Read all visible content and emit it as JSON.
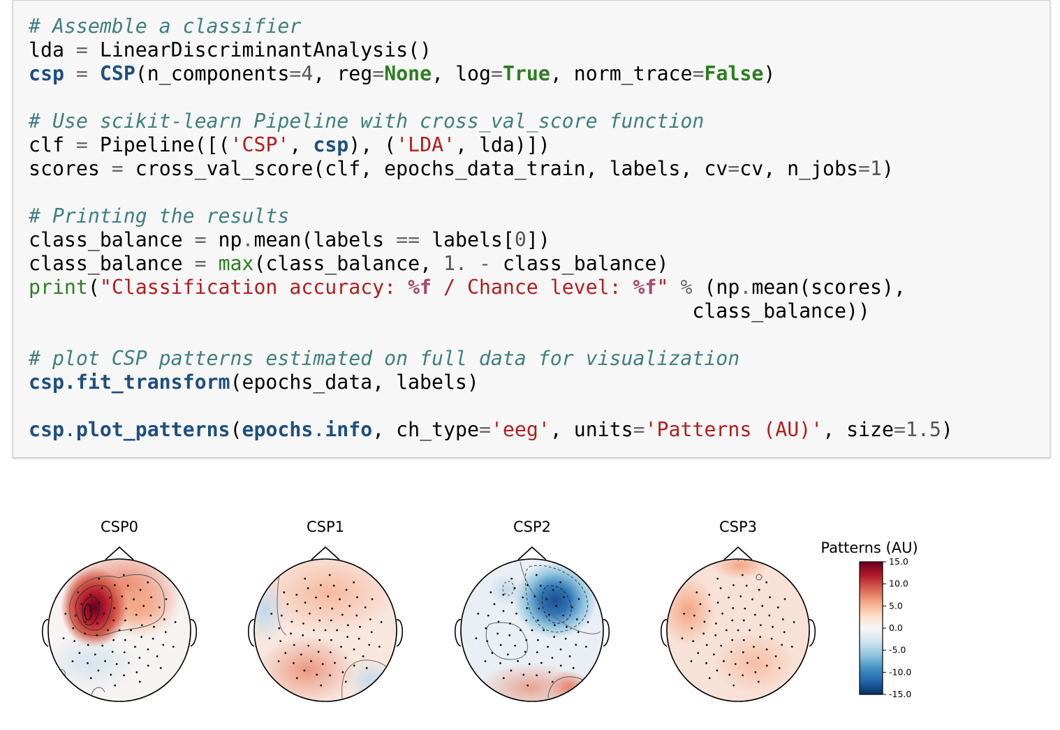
{
  "code": {
    "lines": [
      [
        {
          "t": "c",
          "v": "# Assemble a classifier"
        }
      ],
      [
        {
          "t": "",
          "v": "lda "
        },
        {
          "t": "o",
          "v": "="
        },
        {
          "t": "",
          "v": " LinearDiscriminantAnalysis()"
        }
      ],
      [
        {
          "t": "k",
          "v": "csp"
        },
        {
          "t": "",
          "v": " "
        },
        {
          "t": "o",
          "v": "="
        },
        {
          "t": "",
          "v": " "
        },
        {
          "t": "k",
          "v": "CSP"
        },
        {
          "t": "",
          "v": "(n_components"
        },
        {
          "t": "o",
          "v": "="
        },
        {
          "t": "n",
          "v": "4"
        },
        {
          "t": "",
          "v": ", reg"
        },
        {
          "t": "o",
          "v": "="
        },
        {
          "t": "b",
          "v": "None"
        },
        {
          "t": "",
          "v": ", log"
        },
        {
          "t": "o",
          "v": "="
        },
        {
          "t": "b",
          "v": "True"
        },
        {
          "t": "",
          "v": ", norm_trace"
        },
        {
          "t": "o",
          "v": "="
        },
        {
          "t": "b",
          "v": "False"
        },
        {
          "t": "",
          "v": ")"
        }
      ],
      [],
      [
        {
          "t": "c",
          "v": "# Use scikit-learn Pipeline with cross_val_score function"
        }
      ],
      [
        {
          "t": "",
          "v": "clf "
        },
        {
          "t": "o",
          "v": "="
        },
        {
          "t": "",
          "v": " Pipeline([("
        },
        {
          "t": "s",
          "v": "'CSP'"
        },
        {
          "t": "",
          "v": ", "
        },
        {
          "t": "k",
          "v": "csp"
        },
        {
          "t": "",
          "v": "), ("
        },
        {
          "t": "s",
          "v": "'LDA'"
        },
        {
          "t": "",
          "v": ", lda)])"
        }
      ],
      [
        {
          "t": "",
          "v": "scores "
        },
        {
          "t": "o",
          "v": "="
        },
        {
          "t": "",
          "v": " cross_val_score(clf, epochs_data_train, labels, cv"
        },
        {
          "t": "o",
          "v": "="
        },
        {
          "t": "",
          "v": "cv, n_jobs"
        },
        {
          "t": "o",
          "v": "="
        },
        {
          "t": "n",
          "v": "1"
        },
        {
          "t": "",
          "v": ")"
        }
      ],
      [],
      [
        {
          "t": "c",
          "v": "# Printing the results"
        }
      ],
      [
        {
          "t": "",
          "v": "class_balance "
        },
        {
          "t": "o",
          "v": "="
        },
        {
          "t": "",
          "v": " np"
        },
        {
          "t": "o",
          "v": "."
        },
        {
          "t": "",
          "v": "mean(labels "
        },
        {
          "t": "o",
          "v": "=="
        },
        {
          "t": "",
          "v": " labels["
        },
        {
          "t": "n",
          "v": "0"
        },
        {
          "t": "",
          "v": "])"
        }
      ],
      [
        {
          "t": "",
          "v": "class_balance "
        },
        {
          "t": "o",
          "v": "="
        },
        {
          "t": "",
          "v": " "
        },
        {
          "t": "f",
          "v": "max"
        },
        {
          "t": "",
          "v": "(class_balance, "
        },
        {
          "t": "n",
          "v": "1."
        },
        {
          "t": "",
          "v": " "
        },
        {
          "t": "o",
          "v": "-"
        },
        {
          "t": "",
          "v": " class_balance)"
        }
      ],
      [
        {
          "t": "f",
          "v": "print"
        },
        {
          "t": "",
          "v": "("
        },
        {
          "t": "s",
          "v": "\"Classification accuracy: "
        },
        {
          "t": "p",
          "v": "%f"
        },
        {
          "t": "s",
          "v": " / Chance level: "
        },
        {
          "t": "p",
          "v": "%f"
        },
        {
          "t": "s",
          "v": "\""
        },
        {
          "t": "",
          "v": " "
        },
        {
          "t": "o",
          "v": "%"
        },
        {
          "t": "",
          "v": " (np"
        },
        {
          "t": "o",
          "v": "."
        },
        {
          "t": "",
          "v": "mean(scores),"
        }
      ],
      [
        {
          "t": "",
          "v": "                                                        class_balance))"
        }
      ],
      [],
      [
        {
          "t": "c",
          "v": "# plot CSP patterns estimated on full data for visualization"
        }
      ],
      [
        {
          "t": "k",
          "v": "csp.fit_transform"
        },
        {
          "t": "",
          "v": "(epochs_data, labels)"
        }
      ],
      [],
      [
        {
          "t": "k",
          "v": "csp"
        },
        {
          "t": "a",
          "v": "."
        },
        {
          "t": "k",
          "v": "plot_patterns"
        },
        {
          "t": "",
          "v": "("
        },
        {
          "t": "k",
          "v": "epochs"
        },
        {
          "t": "a",
          "v": "."
        },
        {
          "t": "k",
          "v": "info"
        },
        {
          "t": "",
          "v": ", ch_type"
        },
        {
          "t": "o",
          "v": "="
        },
        {
          "t": "s",
          "v": "'eeg'"
        },
        {
          "t": "",
          "v": ", units"
        },
        {
          "t": "o",
          "v": "="
        },
        {
          "t": "s",
          "v": "'Patterns (AU)'"
        },
        {
          "t": "",
          "v": ", size"
        },
        {
          "t": "o",
          "v": "="
        },
        {
          "t": "n",
          "v": "1.5"
        },
        {
          "t": "",
          "v": ")"
        }
      ]
    ]
  },
  "figure": {
    "topomaps": [
      {
        "title": "CSP0"
      },
      {
        "title": "CSP1"
      },
      {
        "title": "CSP2"
      },
      {
        "title": "CSP3"
      }
    ],
    "colorbar": {
      "label": "Patterns (AU)",
      "ticks": [
        "15.0",
        "10.0",
        "5.0",
        "0.0",
        "-5.0",
        "-10.0",
        "-15.0"
      ],
      "colormap": [
        "#67001f",
        "#b2182b",
        "#d6604d",
        "#f4a582",
        "#fddbc7",
        "#f7f7f7",
        "#d1e5f0",
        "#92c5de",
        "#4393c3",
        "#2166ac",
        "#053061"
      ]
    }
  }
}
